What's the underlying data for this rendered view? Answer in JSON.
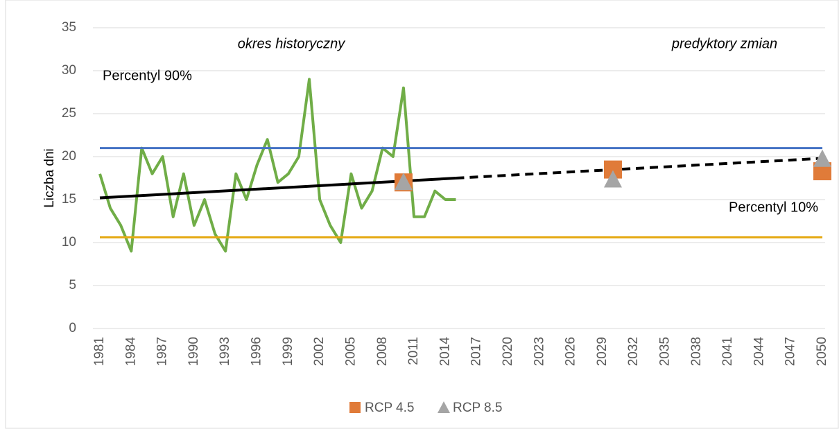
{
  "chart_data": {
    "type": "line",
    "y_label": "Liczba dni",
    "ylim": [
      0,
      35
    ],
    "yticks": [
      0,
      5,
      10,
      15,
      20,
      25,
      30,
      35
    ],
    "xlim": [
      1981,
      2050
    ],
    "xticks": [
      1981,
      1984,
      1987,
      1990,
      1993,
      1996,
      1999,
      2002,
      2005,
      2008,
      2011,
      2014,
      2017,
      2020,
      2023,
      2026,
      2029,
      2032,
      2035,
      2038,
      2041,
      2044,
      2047,
      2050
    ],
    "grid": true,
    "legend": "bottom",
    "annotations": [
      "okres historyczny",
      "predyktory zmian",
      "Percentyl 90%",
      "Percentyl 10%"
    ],
    "series": [
      {
        "type": "line",
        "color": "#70ad47",
        "x": [
          1981,
          1982,
          1983,
          1984,
          1985,
          1986,
          1987,
          1988,
          1989,
          1990,
          1991,
          1992,
          1993,
          1994,
          1995,
          1996,
          1997,
          1998,
          1999,
          2000,
          2001,
          2002,
          2003,
          2004,
          2005,
          2006,
          2007,
          2008,
          2009,
          2010,
          2011,
          2012,
          2013,
          2014,
          2015
        ],
        "values": [
          18,
          14,
          12,
          9,
          21,
          18,
          20,
          13,
          18,
          12,
          15,
          11,
          9,
          18,
          15,
          19,
          22,
          17,
          18,
          20,
          29,
          15,
          12,
          10,
          18,
          14,
          16,
          21,
          20,
          28,
          13,
          13,
          16,
          15,
          15
        ]
      },
      {
        "type": "line",
        "color": "#4472c4",
        "x": [
          1981,
          2050
        ],
        "values": [
          21,
          21
        ]
      },
      {
        "type": "line",
        "color": "#e5a913",
        "x": [
          1981,
          2050
        ],
        "values": [
          10.6,
          10.6
        ]
      },
      {
        "type": "line",
        "color": "#000000",
        "x": [
          1981,
          2015
        ],
        "values": [
          15.2,
          17.5
        ]
      },
      {
        "type": "line",
        "color": "#000000",
        "dashed": true,
        "x": [
          2015,
          2050
        ],
        "values": [
          17.5,
          19.8
        ]
      },
      {
        "type": "scatter",
        "name": "RCP 4.5",
        "marker": "square",
        "color": "#e07b39",
        "x": [
          2010,
          2030,
          2050
        ],
        "values": [
          17,
          18.5,
          18.3
        ]
      },
      {
        "type": "scatter",
        "name": "RCP 8.5",
        "marker": "triangle",
        "color": "#a5a5a5",
        "x": [
          2010,
          2030,
          2050
        ],
        "values": [
          17,
          17.3,
          19.7
        ]
      }
    ]
  }
}
